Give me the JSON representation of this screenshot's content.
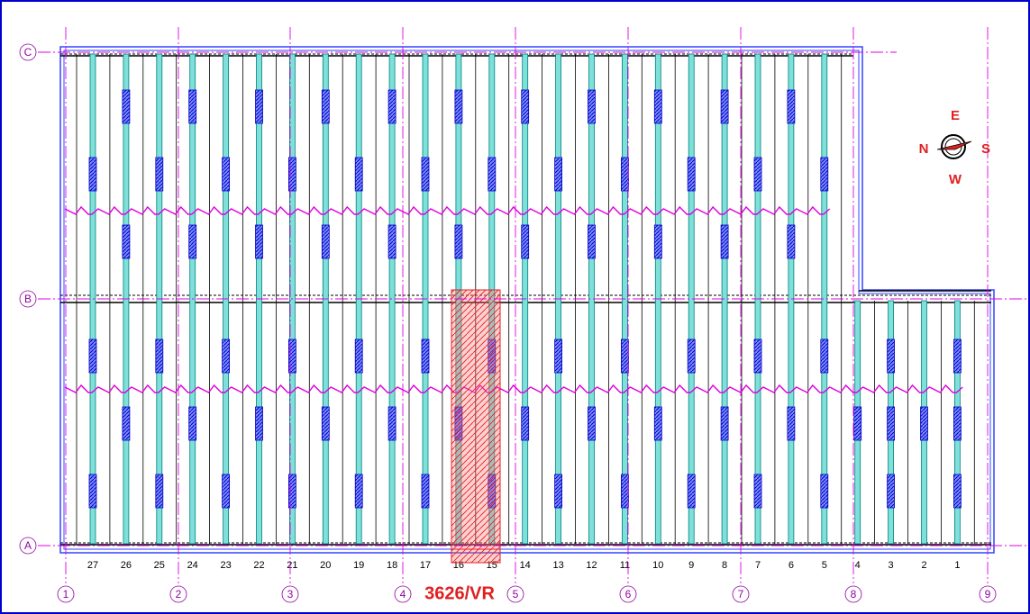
{
  "rows": [
    {
      "label": "C"
    },
    {
      "label": "B"
    },
    {
      "label": "A"
    }
  ],
  "columns": [
    {
      "label": "1"
    },
    {
      "label": "2"
    },
    {
      "label": "3"
    },
    {
      "label": "4"
    },
    {
      "label": "5"
    },
    {
      "label": "6"
    },
    {
      "label": "7"
    },
    {
      "label": "8"
    },
    {
      "label": "9"
    }
  ],
  "bays": [
    "27",
    "26",
    "25",
    "24",
    "23",
    "22",
    "21",
    "20",
    "19",
    "18",
    "17",
    "16",
    "15",
    "14",
    "13",
    "12",
    "11",
    "10",
    "9",
    "8",
    "7",
    "6",
    "5",
    "4",
    "3",
    "2",
    "1"
  ],
  "compass": {
    "north": "N",
    "east": "E",
    "south": "S",
    "west": "W"
  },
  "highlight": {
    "label": "3626/VR"
  }
}
